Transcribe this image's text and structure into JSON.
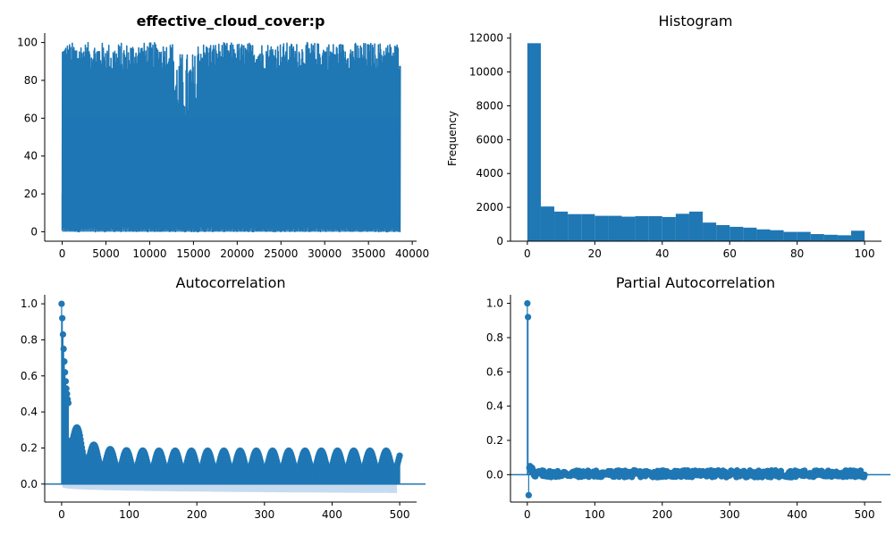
{
  "colors": {
    "series": "#1f77b4",
    "band": "#c6dbef",
    "axis": "#000000"
  },
  "chart_data": [
    {
      "type": "line",
      "title": "effective_cloud_cover:p",
      "xlabel": "",
      "ylabel": "",
      "xlim": [
        -2000,
        40500
      ],
      "ylim": [
        -5,
        105
      ],
      "xticks": [
        0,
        5000,
        10000,
        15000,
        20000,
        25000,
        30000,
        35000,
        40000
      ],
      "yticks": [
        0,
        20,
        40,
        60,
        80,
        100
      ],
      "n_points": 38600,
      "value_range": [
        0,
        100
      ],
      "grid": false
    },
    {
      "type": "bar",
      "title": "Histogram",
      "xlabel": "",
      "ylabel": "Frequency",
      "xlim": [
        -5,
        105
      ],
      "ylim": [
        0,
        12300
      ],
      "xticks": [
        0,
        20,
        40,
        60,
        80,
        100
      ],
      "yticks": [
        0,
        2000,
        4000,
        6000,
        8000,
        10000,
        12000
      ],
      "bin_edges": [
        0,
        4,
        8,
        12,
        16,
        20,
        24,
        28,
        32,
        36,
        40,
        44,
        48,
        52,
        56,
        60,
        64,
        68,
        72,
        76,
        80,
        84,
        88,
        92,
        96,
        100
      ],
      "values": [
        11700,
        2050,
        1750,
        1600,
        1600,
        1500,
        1500,
        1450,
        1480,
        1480,
        1430,
        1620,
        1750,
        1100,
        950,
        850,
        800,
        700,
        650,
        550,
        550,
        420,
        380,
        350,
        620
      ],
      "grid": false
    },
    {
      "type": "scatter",
      "title": "Autocorrelation",
      "xlabel": "",
      "ylabel": "",
      "xlim": [
        -25,
        525
      ],
      "ylim": [
        -0.1,
        1.05
      ],
      "xticks": [
        0,
        100,
        200,
        300,
        400,
        500
      ],
      "yticks": [
        0.0,
        0.2,
        0.4,
        0.6,
        0.8,
        1.0
      ],
      "lags": 500,
      "first_values": [
        1.0,
        0.92,
        0.83,
        0.75,
        0.68,
        0.62,
        0.57,
        0.53,
        0.5,
        0.47,
        0.45
      ],
      "tail_mean": 0.13,
      "tail_amplitude": 0.055,
      "cycle_lags": 24,
      "confidence_band": [
        -0.01,
        -0.05
      ],
      "grid": false
    },
    {
      "type": "scatter",
      "title": "Partial Autocorrelation",
      "xlabel": "",
      "ylabel": "",
      "xlim": [
        -25,
        525
      ],
      "ylim": [
        -0.16,
        1.05
      ],
      "xticks": [
        0,
        100,
        200,
        300,
        400,
        500
      ],
      "yticks": [
        0.0,
        0.2,
        0.4,
        0.6,
        0.8,
        1.0
      ],
      "lags": 500,
      "first_values": [
        1.0,
        0.92,
        -0.12,
        0.04,
        0.05,
        0.03,
        0.02,
        0.04,
        0.03,
        0.02
      ],
      "tail_amplitude": 0.02,
      "grid": false
    }
  ]
}
